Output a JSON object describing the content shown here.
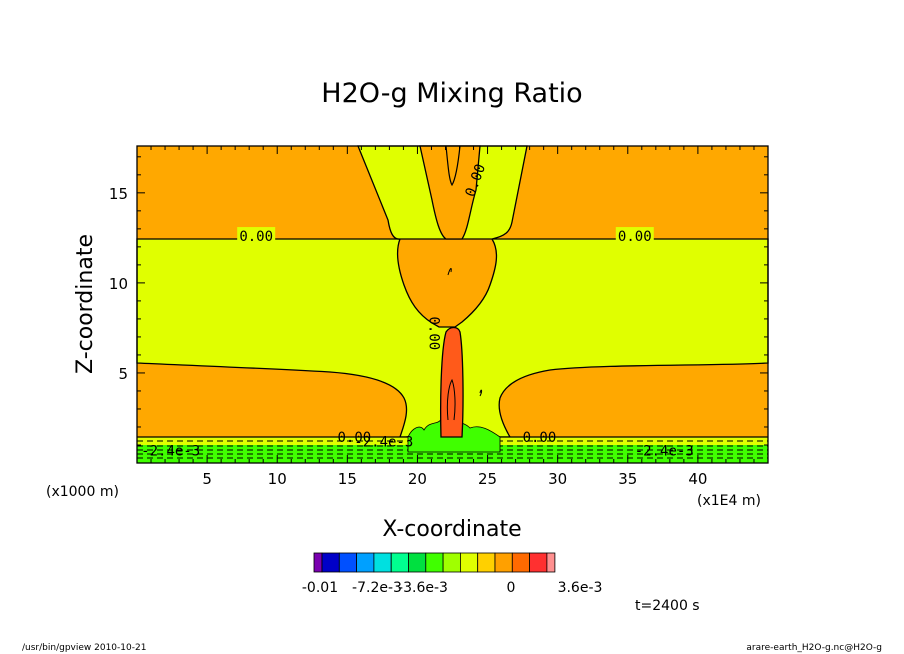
{
  "chart_data": {
    "type": "contour",
    "title": "H2O-g Mixing Ratio",
    "xlabel": "X-coordinate",
    "ylabel": "Z-coordinate",
    "x_unit_left": "(x1000 m)",
    "x_unit_right": "(x1E4 m)",
    "xlim": [
      0,
      45
    ],
    "ylim": [
      0,
      17.6
    ],
    "x_ticks": [
      5,
      10,
      15,
      20,
      25,
      30,
      35,
      40
    ],
    "y_ticks": [
      5,
      10,
      15
    ],
    "contour_labels": [
      {
        "text": "0.00",
        "x": 8.5,
        "y": 12.6
      },
      {
        "text": "0.00",
        "x": 35.5,
        "y": 12.6
      },
      {
        "text": "0.00",
        "x": 24.1,
        "y": 15.7
      },
      {
        "text": "0.00",
        "x": 21.2,
        "y": 7.2
      },
      {
        "text": "0.00",
        "x": 15.5,
        "y": 1.45
      },
      {
        "text": "0.00",
        "x": 28.7,
        "y": 1.45
      },
      {
        "text": "-2.4e-3",
        "x": 2.4,
        "y": 0.7
      },
      {
        "text": "-2.4e-3",
        "x": 37.6,
        "y": 0.7
      },
      {
        "text": "-2.4e-3",
        "x": 17.6,
        "y": 1.2
      }
    ],
    "colorbar": {
      "colors": [
        "#7a00b0",
        "#0000c8",
        "#0050ff",
        "#00a0ff",
        "#00e0e0",
        "#00ff90",
        "#00e040",
        "#40ff00",
        "#a0ff00",
        "#e0ff00",
        "#ffd000",
        "#ffa000",
        "#ff6a00",
        "#ff3030",
        "#ff9090"
      ],
      "tick_labels": [
        "-0.01",
        "-7.2e-3",
        "-3.6e-3",
        "0",
        "3.6e-3"
      ]
    },
    "time_label": "t=2400 s"
  },
  "footer": {
    "left": "/usr/bin/gpview 2010-10-21",
    "right": "arare-earth_H2O-g.nc@H2O-g"
  }
}
